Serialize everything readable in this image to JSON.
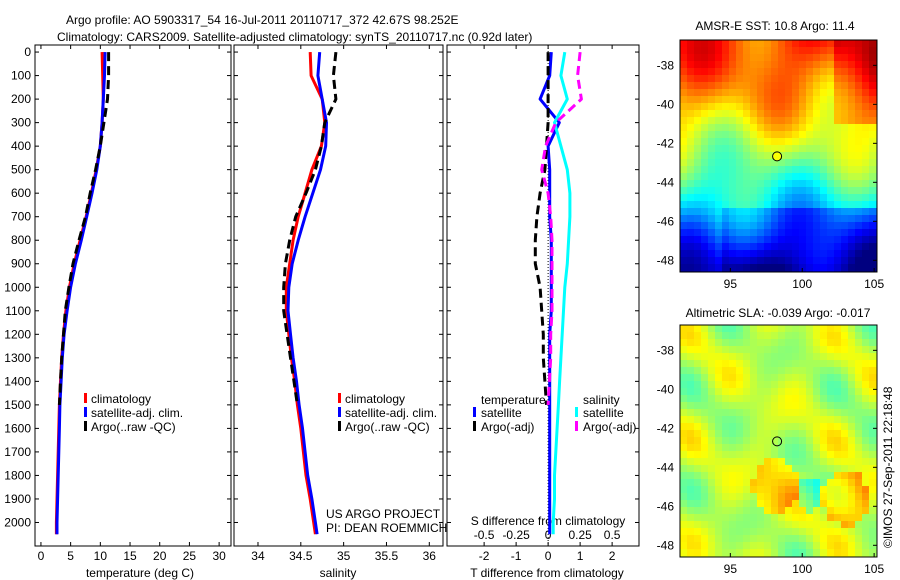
{
  "title_line1": "Argo profile: AO 5903317_54 16-Jul-2011 20110717_372 42.67S 98.252E",
  "title_line2": "Climatology: CARS2009. Satellite-adjusted climatology: synTS_20110717.nc (0.92d later)",
  "colors": {
    "climatology": "#ff0000",
    "satellite": "#0000ff",
    "argo": "#000000",
    "sal_satellite": "#00ffff",
    "sal_argo": "#ff00ff"
  },
  "chart_data": [
    {
      "type": "line",
      "panel": "temperature",
      "xlabel": "temperature (deg C)",
      "ylabel": "",
      "xlim": [
        -1,
        32
      ],
      "ylim": [
        2100,
        -30
      ],
      "xticks": [
        0,
        5,
        10,
        15,
        20,
        25,
        30
      ],
      "yticks": [
        0,
        100,
        200,
        300,
        400,
        500,
        600,
        700,
        800,
        900,
        1000,
        1100,
        1200,
        1300,
        1400,
        1500,
        1600,
        1700,
        1800,
        1900,
        2000
      ],
      "legend": [
        "climatology",
        "satellite-adj. clim.",
        "Argo(..raw -QC)"
      ],
      "depth": [
        0,
        100,
        200,
        300,
        400,
        500,
        600,
        700,
        800,
        900,
        1000,
        1100,
        1200,
        1300,
        1400,
        1500,
        1600,
        1700,
        1800,
        1900,
        2000,
        2050
      ],
      "series": [
        {
          "name": "climatology",
          "values": [
            10.3,
            10.4,
            10.5,
            10.3,
            10.0,
            9.3,
            8.5,
            7.6,
            6.6,
            5.6,
            4.8,
            4.2,
            3.8,
            3.5,
            3.3,
            3.1,
            3.0,
            2.9,
            2.8,
            2.7,
            2.6,
            2.6
          ]
        },
        {
          "name": "satellite-adj. clim.",
          "values": [
            10.8,
            10.7,
            10.5,
            10.3,
            10.0,
            9.4,
            8.6,
            7.7,
            6.8,
            5.8,
            5.0,
            4.4,
            3.9,
            3.6,
            3.4,
            3.2,
            3.1,
            3.0,
            2.9,
            2.8,
            2.7,
            2.7
          ]
        },
        {
          "name": "Argo(..raw -QC)",
          "values": [
            11.4,
            11.4,
            11.2,
            10.6,
            10.0,
            9.2,
            8.3,
            7.5,
            6.4,
            5.4,
            4.7,
            4.1,
            3.8,
            3.5,
            3.3,
            3.1,
            null,
            null,
            null,
            null,
            null,
            null
          ]
        }
      ]
    },
    {
      "type": "line",
      "panel": "salinity",
      "xlabel": "salinity",
      "xlim": [
        33.72,
        36.16
      ],
      "ylim": [
        2100,
        -30
      ],
      "xticks": [
        34,
        34.5,
        35,
        35.5,
        36
      ],
      "xticklabels": [
        "34",
        "34.5",
        "35",
        "35.5",
        "36"
      ],
      "legend": [
        "climatology",
        "satellite-adj. clim.",
        "Argo(..raw -QC)"
      ],
      "annotation": [
        "US ARGO PROJECT",
        "PI: DEAN ROEMMICH"
      ],
      "depth": [
        0,
        100,
        200,
        300,
        400,
        500,
        600,
        700,
        800,
        900,
        1000,
        1100,
        1200,
        1300,
        1400,
        1500,
        1600,
        1700,
        1800,
        1900,
        2000,
        2050
      ],
      "series": [
        {
          "name": "climatology",
          "values": [
            34.61,
            34.62,
            34.75,
            34.78,
            34.74,
            34.63,
            34.55,
            34.47,
            34.41,
            34.37,
            34.33,
            34.33,
            34.36,
            34.39,
            34.43,
            34.46,
            34.5,
            34.53,
            34.56,
            34.61,
            34.65,
            34.67
          ]
        },
        {
          "name": "satellite-adj. clim.",
          "values": [
            34.72,
            34.7,
            34.75,
            34.8,
            34.79,
            34.73,
            34.64,
            34.55,
            34.47,
            34.4,
            34.36,
            34.35,
            34.38,
            34.41,
            34.45,
            34.48,
            34.52,
            34.55,
            34.58,
            34.63,
            34.67,
            34.69
          ]
        },
        {
          "name": "Argo(..raw -QC)",
          "values": [
            34.91,
            34.88,
            34.91,
            34.78,
            34.74,
            34.67,
            34.56,
            34.44,
            34.37,
            34.32,
            34.3,
            34.3,
            34.34,
            34.38,
            34.42,
            34.46,
            null,
            null,
            null,
            null,
            null,
            null
          ]
        }
      ]
    },
    {
      "type": "line",
      "panel": "difference",
      "xlabel": "T difference from climatology",
      "xlabel_top": "S difference from climatology",
      "xlim": [
        -3.16,
        2.84
      ],
      "ylim": [
        2100,
        -30
      ],
      "xticks": [
        -2,
        -1,
        0,
        1,
        2
      ],
      "xticklabels": [
        "-2",
        "-1",
        "0",
        "1",
        "2"
      ],
      "sticks": [
        -0.5,
        -0.25,
        0,
        0.25,
        0.5
      ],
      "sticklabels": [
        "-0.5",
        "-0.25",
        "0",
        "0.25",
        "0.5"
      ],
      "legend": {
        "temperature_title": "temperature",
        "salinity_title": "salinity",
        "satellite": "satellite",
        "argo": "Argo(-adj)"
      },
      "depth": [
        0,
        100,
        200,
        300,
        400,
        500,
        600,
        700,
        800,
        900,
        1000,
        1100,
        1200,
        1300,
        1400,
        1500,
        1600,
        1700,
        1800,
        1900,
        2000,
        2050
      ],
      "series": [
        {
          "name": "T satellite",
          "unit": "degC",
          "values": [
            0.1,
            0.05,
            -0.25,
            0.35,
            0.0,
            0.05,
            0.05,
            0.05,
            0.1,
            0.1,
            0.1,
            0.1,
            0.05,
            0.05,
            0.05,
            0.05,
            0.05,
            0.05,
            0.05,
            0.05,
            0.05,
            0.05
          ]
        },
        {
          "name": "T Argo(-adj)",
          "unit": "degC",
          "values": [
            0.0,
            0.0,
            0.0,
            0.0,
            -0.05,
            -0.1,
            -0.25,
            -0.35,
            -0.4,
            -0.4,
            -0.25,
            -0.2,
            -0.15,
            -0.15,
            -0.1,
            -0.05,
            null,
            null,
            null,
            null,
            null,
            null
          ]
        },
        {
          "name": "S satellite",
          "unit": "psu",
          "values": [
            0.13,
            0.1,
            0.15,
            0.05,
            0.1,
            0.15,
            0.17,
            0.17,
            0.16,
            0.15,
            0.13,
            0.12,
            0.11,
            0.1,
            0.09,
            0.08,
            0.07,
            0.06,
            0.05,
            0.05,
            0.04,
            0.04
          ]
        },
        {
          "name": "S Argo(-adj)",
          "unit": "psu",
          "values": [
            0.25,
            0.23,
            0.26,
            0.06,
            -0.02,
            -0.05,
            0.0,
            0.02,
            0.03,
            0.03,
            0.03,
            0.03,
            0.02,
            0.02,
            0.01,
            0.0,
            null,
            null,
            null,
            null,
            null,
            null
          ]
        }
      ]
    },
    {
      "type": "heatmap",
      "panel": "sst-map",
      "title": "AMSR-E SST: 10.8 Argo: 11.4",
      "xlim": [
        91.5,
        105.2
      ],
      "ylim": [
        -48.6,
        -36.7
      ],
      "xticks": [
        95,
        100,
        105
      ],
      "yticks": [
        -38,
        -40,
        -42,
        -44,
        -46,
        -48
      ],
      "marker": {
        "lon": 98.252,
        "lat": -42.67
      }
    },
    {
      "type": "heatmap",
      "panel": "sla-map",
      "title": "Altimetric SLA: -0.039 Argo: -0.017",
      "xlim": [
        91.5,
        105.2
      ],
      "ylim": [
        -48.6,
        -36.7
      ],
      "xticks": [
        95,
        100,
        105
      ],
      "yticks": [
        -38,
        -40,
        -42,
        -44,
        -46,
        -48
      ],
      "marker": {
        "lon": 98.252,
        "lat": -42.67
      }
    }
  ],
  "credit": "©IMOS 27-Sep-2011 22:18:48"
}
